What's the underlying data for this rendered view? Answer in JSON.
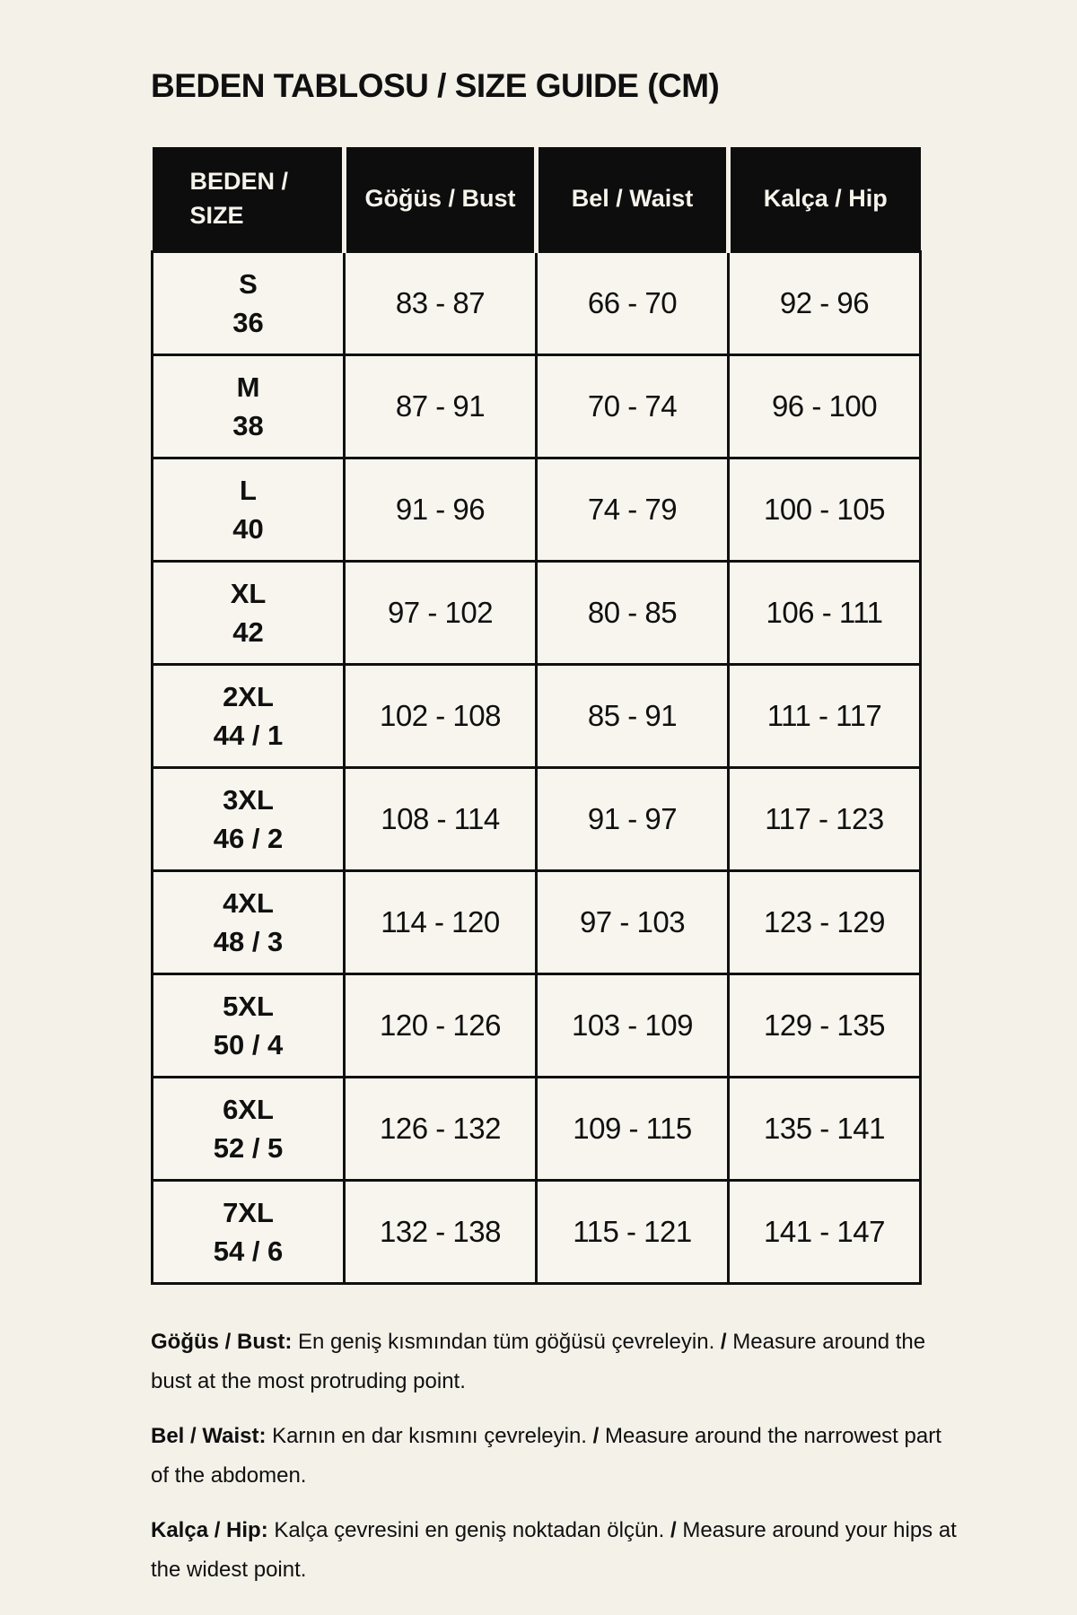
{
  "colors": {
    "background": "#f4f1e9",
    "ink": "#101010",
    "header_bg": "#0d0d0d",
    "header_text": "#f6f3eb"
  },
  "title": "BEDEN TABLOSU / SIZE GUIDE (CM)",
  "table": {
    "headers": {
      "size": "BEDEN / SIZE",
      "bust": "Göğüs / Bust",
      "waist": "Bel / Waist",
      "hip": "Kalça / Hip"
    },
    "rows": [
      {
        "size": "S",
        "alt": "36",
        "bust": "83 - 87",
        "waist": "66 - 70",
        "hip": "92 - 96"
      },
      {
        "size": "M",
        "alt": "38",
        "bust": "87 - 91",
        "waist": "70 - 74",
        "hip": "96 - 100"
      },
      {
        "size": "L",
        "alt": "40",
        "bust": "91 - 96",
        "waist": "74 - 79",
        "hip": "100 - 105"
      },
      {
        "size": "XL",
        "alt": "42",
        "bust": "97 - 102",
        "waist": "80 - 85",
        "hip": "106 - 111"
      },
      {
        "size": "2XL",
        "alt": "44 / 1",
        "bust": "102 - 108",
        "waist": "85 - 91",
        "hip": "111 - 117"
      },
      {
        "size": "3XL",
        "alt": "46 / 2",
        "bust": "108 - 114",
        "waist": "91 - 97",
        "hip": "117 - 123"
      },
      {
        "size": "4XL",
        "alt": "48 / 3",
        "bust": "114 - 120",
        "waist": "97 - 103",
        "hip": "123 - 129"
      },
      {
        "size": "5XL",
        "alt": "50 / 4",
        "bust": "120 - 126",
        "waist": "103 - 109",
        "hip": "129 - 135"
      },
      {
        "size": "6XL",
        "alt": "52 / 5",
        "bust": "126 - 132",
        "waist": "109 - 115",
        "hip": "135 - 141"
      },
      {
        "size": "7XL",
        "alt": "54 / 6",
        "bust": "132 - 138",
        "waist": "115 - 121",
        "hip": "141 - 147"
      }
    ]
  },
  "notes": [
    {
      "label": "Göğüs / Bust:",
      "tr": "En geniş kısmından tüm göğüsü çevreleyin.",
      "sep": "/",
      "en": "Measure around the bust at the most protruding point."
    },
    {
      "label": "Bel / Waist:",
      "tr": "Karnın en dar kısmını çevreleyin.",
      "sep": "/",
      "en": "Measure around the narrowest part of the abdomen."
    },
    {
      "label": "Kalça / Hip:",
      "tr": "Kalça çevresini en geniş noktadan ölçün.",
      "sep": "/",
      "en": "Measure around your hips at the widest point."
    }
  ]
}
